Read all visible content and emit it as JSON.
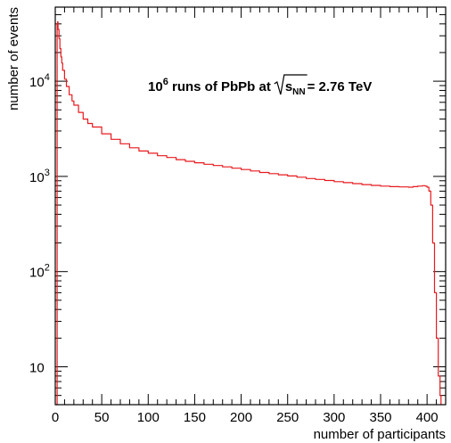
{
  "chart_data": {
    "type": "line",
    "title": "",
    "annotation": {
      "base": "10",
      "exp": "6",
      "mid": " runs of PbPb at ",
      "sub_main": "s",
      "sub_script": "NN",
      "tail": " = 2.76 TeV"
    },
    "xlabel": "number of participants",
    "ylabel": "number of events",
    "xlim": [
      0,
      420
    ],
    "ylim": [
      4,
      60000
    ],
    "yscale": "log",
    "grid": false,
    "x_ticks": [
      {
        "value": 0,
        "label": "0"
      },
      {
        "value": 50,
        "label": "50"
      },
      {
        "value": 100,
        "label": "100"
      },
      {
        "value": 150,
        "label": "150"
      },
      {
        "value": 200,
        "label": "200"
      },
      {
        "value": 250,
        "label": "250"
      },
      {
        "value": 300,
        "label": "300"
      },
      {
        "value": 350,
        "label": "350"
      },
      {
        "value": 400,
        "label": "400"
      }
    ],
    "y_ticks": [
      {
        "value": 10,
        "base": "10",
        "exp": ""
      },
      {
        "value": 100,
        "base": "10",
        "exp": "2"
      },
      {
        "value": 1000,
        "base": "10",
        "exp": "3"
      },
      {
        "value": 10000,
        "base": "10",
        "exp": "4"
      }
    ],
    "series": [
      {
        "color": "#e8191d",
        "x": [
          1,
          2,
          2.5,
          3,
          4,
          5,
          6,
          7,
          8,
          10,
          12,
          15,
          18,
          20,
          25,
          30,
          35,
          40,
          50,
          60,
          70,
          80,
          90,
          100,
          110,
          120,
          130,
          140,
          150,
          160,
          170,
          180,
          190,
          200,
          210,
          220,
          230,
          240,
          250,
          260,
          270,
          280,
          290,
          300,
          310,
          320,
          330,
          340,
          350,
          360,
          370,
          380,
          385,
          390,
          395,
          398,
          400,
          402,
          404,
          406,
          408,
          410,
          412,
          414,
          415
        ],
        "y": [
          4,
          40000,
          42000,
          35000,
          28000,
          22000,
          18000,
          15500,
          13000,
          10500,
          8800,
          7200,
          6200,
          5600,
          4700,
          4000,
          3600,
          3300,
          2800,
          2450,
          2200,
          2000,
          1850,
          1750,
          1650,
          1580,
          1500,
          1440,
          1390,
          1340,
          1300,
          1260,
          1220,
          1180,
          1140,
          1100,
          1070,
          1040,
          1010,
          980,
          950,
          930,
          905,
          880,
          860,
          840,
          820,
          805,
          790,
          780,
          775,
          770,
          780,
          790,
          800,
          790,
          770,
          700,
          500,
          200,
          60,
          20,
          8,
          5,
          4
        ]
      }
    ]
  }
}
